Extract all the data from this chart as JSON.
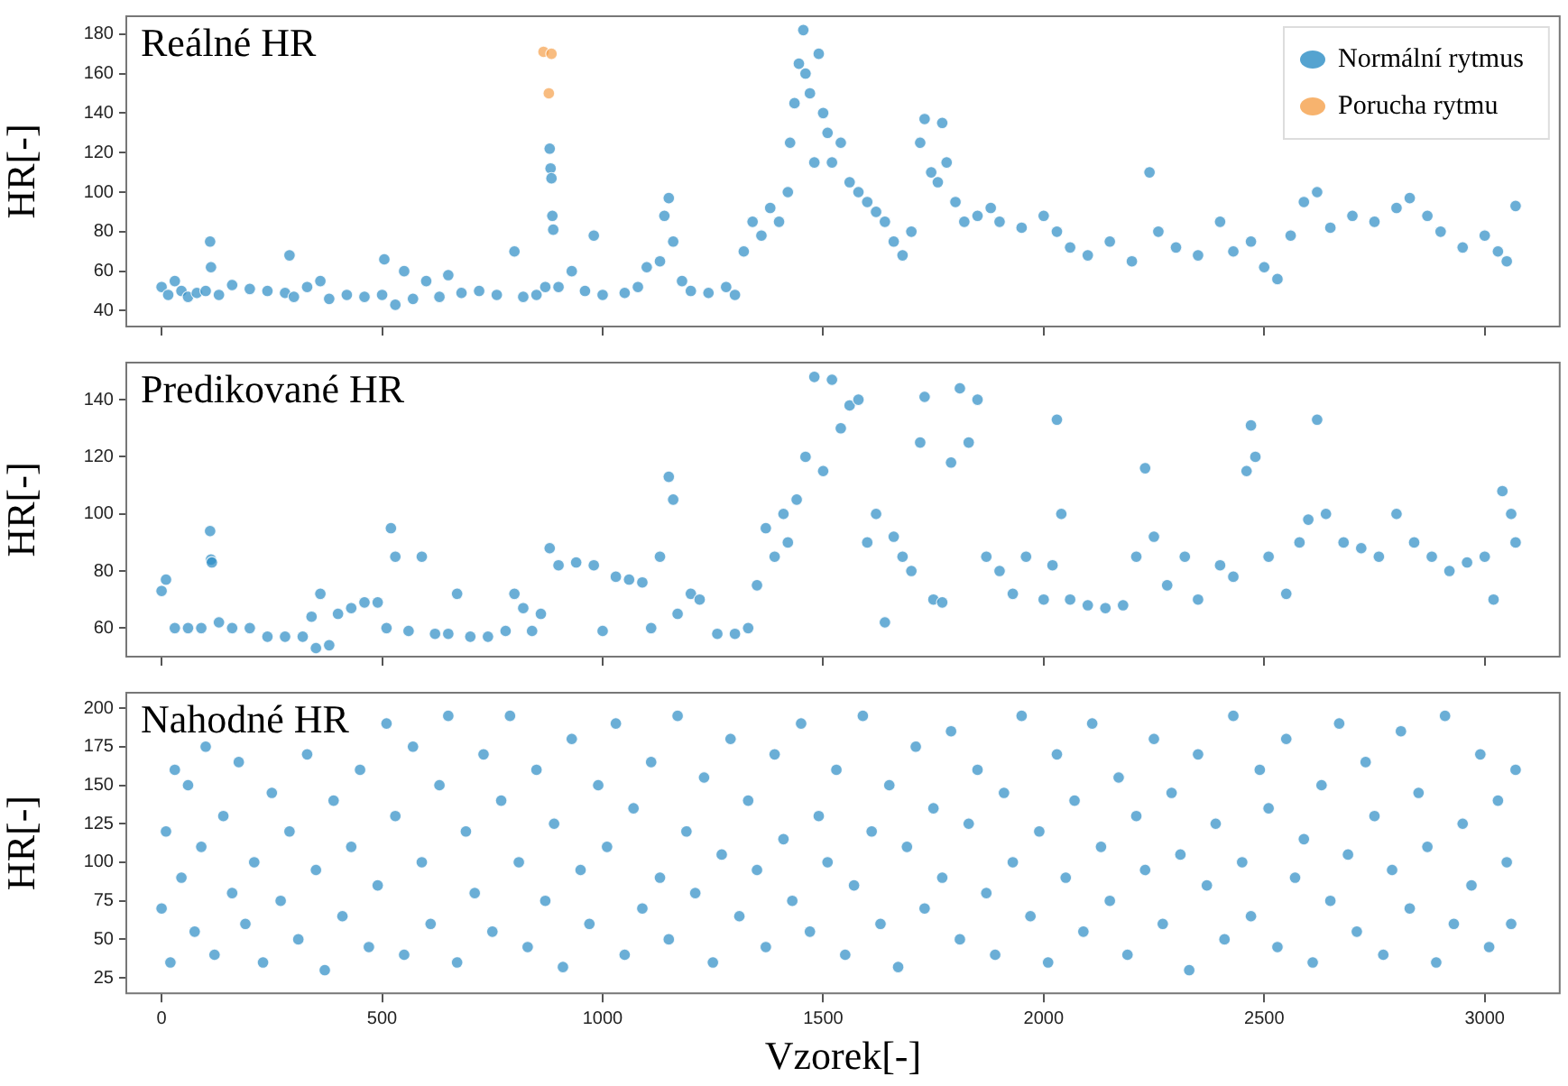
{
  "chart_data": [
    {
      "type": "scatter",
      "title": "Reálné HR",
      "ylabel": "HR[-]",
      "xlim": [
        -80,
        3170
      ],
      "xticks": [
        0,
        500,
        1000,
        1500,
        2000,
        2500,
        3000
      ],
      "ylim": [
        32,
        189
      ],
      "yticks": [
        40,
        60,
        80,
        100,
        120,
        140,
        160,
        180
      ],
      "tick_labels": "y",
      "legend": "top right",
      "marker": "circle",
      "grid": false,
      "series": [
        {
          "name": "Normální rytmus",
          "color": "#2b8cc4",
          "x": [
            0,
            15,
            30,
            45,
            60,
            80,
            100,
            110,
            112,
            130,
            160,
            200,
            240,
            280,
            290,
            300,
            330,
            360,
            380,
            420,
            460,
            500,
            505,
            530,
            550,
            570,
            600,
            630,
            650,
            680,
            720,
            760,
            800,
            820,
            850,
            870,
            880,
            882,
            884,
            886,
            888,
            900,
            930,
            960,
            980,
            1000,
            1050,
            1080,
            1100,
            1130,
            1140,
            1150,
            1160,
            1180,
            1200,
            1240,
            1280,
            1300,
            1320,
            1340,
            1360,
            1380,
            1400,
            1420,
            1425,
            1435,
            1445,
            1455,
            1460,
            1470,
            1480,
            1490,
            1500,
            1510,
            1520,
            1540,
            1560,
            1580,
            1600,
            1620,
            1640,
            1660,
            1680,
            1700,
            1720,
            1730,
            1745,
            1760,
            1770,
            1780,
            1800,
            1820,
            1850,
            1880,
            1900,
            1950,
            2000,
            2030,
            2060,
            2100,
            2150,
            2200,
            2240,
            2260,
            2300,
            2350,
            2400,
            2430,
            2470,
            2500,
            2530,
            2560,
            2590,
            2620,
            2650,
            2700,
            2750,
            2800,
            2830,
            2870,
            2900,
            2950,
            3000,
            3030,
            3050,
            3070
          ],
          "values": [
            52,
            48,
            55,
            50,
            47,
            49,
            50,
            75,
            62,
            48,
            53,
            51,
            50,
            49,
            68,
            47,
            52,
            55,
            46,
            48,
            47,
            48,
            66,
            43,
            60,
            46,
            55,
            47,
            58,
            49,
            50,
            48,
            70,
            47,
            48,
            52,
            122,
            112,
            107,
            88,
            81,
            52,
            60,
            50,
            78,
            48,
            49,
            52,
            62,
            65,
            88,
            97,
            75,
            55,
            50,
            49,
            52,
            48,
            70,
            85,
            78,
            92,
            85,
            100,
            125,
            145,
            165,
            182,
            160,
            150,
            115,
            170,
            140,
            130,
            115,
            125,
            105,
            100,
            95,
            90,
            85,
            75,
            68,
            80,
            125,
            137,
            110,
            105,
            135,
            115,
            95,
            85,
            88,
            92,
            85,
            82,
            88,
            80,
            72,
            68,
            75,
            65,
            110,
            80,
            72,
            68,
            85,
            70,
            75,
            62,
            56,
            78,
            95,
            100,
            82,
            88,
            85,
            92,
            97,
            88,
            80,
            72,
            78,
            70,
            65,
            93
          ]
        },
        {
          "name": "Porucha rytmu",
          "color": "#f5a04a",
          "x": [
            866,
            884,
            878
          ],
          "values": [
            171,
            170,
            150
          ]
        }
      ]
    },
    {
      "type": "scatter",
      "title": "Predikované HR",
      "ylabel": "HR[-]",
      "xlim": [
        -80,
        3170
      ],
      "xticks": [
        0,
        500,
        1000,
        1500,
        2000,
        2500,
        3000
      ],
      "ylim": [
        50,
        153
      ],
      "yticks": [
        60,
        80,
        100,
        120,
        140
      ],
      "tick_labels": "y",
      "marker": "circle",
      "grid": false,
      "series": [
        {
          "color": "#2b8cc4",
          "x": [
            0,
            10,
            30,
            60,
            90,
            110,
            112,
            114,
            130,
            160,
            200,
            240,
            280,
            320,
            340,
            350,
            360,
            380,
            400,
            430,
            460,
            490,
            510,
            520,
            530,
            560,
            590,
            620,
            650,
            670,
            700,
            740,
            780,
            800,
            820,
            840,
            860,
            880,
            900,
            940,
            980,
            1000,
            1030,
            1060,
            1090,
            1110,
            1130,
            1150,
            1160,
            1170,
            1200,
            1220,
            1260,
            1300,
            1330,
            1350,
            1370,
            1390,
            1410,
            1420,
            1440,
            1460,
            1480,
            1500,
            1520,
            1540,
            1560,
            1580,
            1600,
            1620,
            1640,
            1660,
            1680,
            1700,
            1720,
            1730,
            1750,
            1770,
            1790,
            1810,
            1830,
            1850,
            1870,
            1900,
            1930,
            1960,
            2000,
            2020,
            2030,
            2040,
            2060,
            2100,
            2140,
            2180,
            2210,
            2230,
            2250,
            2280,
            2320,
            2350,
            2400,
            2430,
            2460,
            2470,
            2480,
            2510,
            2550,
            2580,
            2600,
            2620,
            2640,
            2680,
            2720,
            2760,
            2800,
            2840,
            2880,
            2920,
            2960,
            3000,
            3020,
            3040,
            3060,
            3070
          ],
          "values": [
            73,
            77,
            60,
            60,
            60,
            94,
            84,
            83,
            62,
            60,
            60,
            57,
            57,
            57,
            64,
            53,
            72,
            54,
            65,
            67,
            69,
            69,
            60,
            95,
            85,
            59,
            85,
            58,
            58,
            72,
            57,
            57,
            59,
            72,
            67,
            59,
            65,
            88,
            82,
            83,
            82,
            59,
            78,
            77,
            76,
            60,
            85,
            113,
            105,
            65,
            72,
            70,
            58,
            58,
            60,
            75,
            95,
            85,
            100,
            90,
            105,
            120,
            148,
            115,
            147,
            130,
            138,
            140,
            90,
            100,
            62,
            92,
            85,
            80,
            125,
            141,
            70,
            69,
            118,
            144,
            125,
            140,
            85,
            80,
            72,
            85,
            70,
            82,
            133,
            100,
            70,
            68,
            67,
            68,
            85,
            116,
            92,
            75,
            85,
            70,
            82,
            78,
            115,
            131,
            120,
            85,
            72,
            90,
            98,
            133,
            100,
            90,
            88,
            85,
            100,
            90,
            85,
            80,
            83,
            85,
            70,
            108,
            100,
            90
          ]
        }
      ]
    },
    {
      "type": "scatter",
      "title": "Nahodné HR",
      "xlabel": "Vzorek[-]",
      "ylabel": "HR[-]",
      "xlim": [
        -80,
        3170
      ],
      "xticks": [
        0,
        500,
        1000,
        1500,
        2000,
        2500,
        3000
      ],
      "ylim": [
        15,
        210
      ],
      "yticks": [
        25,
        50,
        75,
        100,
        125,
        150,
        175,
        200
      ],
      "marker": "circle",
      "grid": false,
      "series": [
        {
          "color": "#2b8cc4",
          "x": [
            0,
            10,
            20,
            30,
            45,
            60,
            75,
            90,
            100,
            120,
            140,
            160,
            175,
            190,
            210,
            230,
            250,
            270,
            290,
            310,
            330,
            350,
            370,
            390,
            410,
            430,
            450,
            470,
            490,
            510,
            530,
            550,
            570,
            590,
            610,
            630,
            650,
            670,
            690,
            710,
            730,
            750,
            770,
            790,
            810,
            830,
            850,
            870,
            890,
            910,
            930,
            950,
            970,
            990,
            1010,
            1030,
            1050,
            1070,
            1090,
            1110,
            1130,
            1150,
            1170,
            1190,
            1210,
            1230,
            1250,
            1270,
            1290,
            1310,
            1330,
            1350,
            1370,
            1390,
            1410,
            1430,
            1450,
            1470,
            1490,
            1510,
            1530,
            1550,
            1570,
            1590,
            1610,
            1630,
            1650,
            1670,
            1690,
            1710,
            1730,
            1750,
            1770,
            1790,
            1810,
            1830,
            1850,
            1870,
            1890,
            1910,
            1930,
            1950,
            1970,
            1990,
            2010,
            2030,
            2050,
            2070,
            2090,
            2110,
            2130,
            2150,
            2170,
            2190,
            2210,
            2230,
            2250,
            2270,
            2290,
            2310,
            2330,
            2350,
            2370,
            2390,
            2410,
            2430,
            2450,
            2470,
            2490,
            2510,
            2530,
            2550,
            2570,
            2590,
            2610,
            2630,
            2650,
            2670,
            2690,
            2710,
            2730,
            2750,
            2770,
            2790,
            2810,
            2830,
            2850,
            2870,
            2890,
            2910,
            2930,
            2950,
            2970,
            2990,
            3010,
            3030,
            3050,
            3060,
            3070
          ],
          "values": [
            70,
            120,
            35,
            160,
            90,
            150,
            55,
            110,
            175,
            40,
            130,
            80,
            165,
            60,
            100,
            35,
            145,
            75,
            120,
            50,
            170,
            95,
            30,
            140,
            65,
            110,
            160,
            45,
            85,
            190,
            130,
            40,
            175,
            100,
            60,
            150,
            195,
            35,
            120,
            80,
            170,
            55,
            140,
            195,
            100,
            45,
            160,
            75,
            125,
            32,
            180,
            95,
            60,
            150,
            110,
            190,
            40,
            135,
            70,
            165,
            90,
            50,
            195,
            120,
            80,
            155,
            35,
            105,
            180,
            65,
            140,
            95,
            45,
            170,
            115,
            75,
            190,
            55,
            130,
            100,
            160,
            40,
            85,
            195,
            120,
            60,
            150,
            32,
            110,
            175,
            70,
            135,
            90,
            185,
            50,
            125,
            160,
            80,
            40,
            145,
            100,
            195,
            65,
            120,
            35,
            170,
            90,
            140,
            55,
            190,
            110,
            75,
            155,
            40,
            130,
            95,
            180,
            60,
            145,
            105,
            30,
            170,
            85,
            125,
            50,
            195,
            100,
            65,
            160,
            135,
            45,
            180,
            90,
            115,
            35,
            150,
            75,
            190,
            105,
            55,
            165,
            130,
            40,
            95,
            185,
            70,
            145,
            110,
            35,
            195,
            60,
            125,
            85,
            170,
            45,
            140,
            100,
            60,
            160
          ]
        }
      ]
    }
  ]
}
